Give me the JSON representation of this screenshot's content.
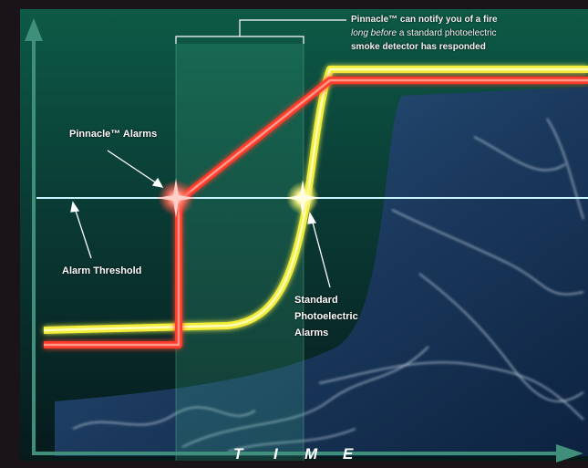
{
  "callout": {
    "line1": "Pinnacle™ can notify you of a fire",
    "line2_emph": "long before",
    "line2_rest": " a standard photoelectric",
    "line3": "smoke detector has responded"
  },
  "labels": {
    "pinnacle_alarms": "Pinnacle™ Alarms",
    "alarm_threshold": "Alarm Threshold",
    "standard_line1": "Standard",
    "standard_line2": "Photoelectric",
    "standard_line3": "Alarms"
  },
  "axis": {
    "time_letters": [
      "T",
      "I",
      "M",
      "E"
    ]
  },
  "colors": {
    "background": "#1a1418",
    "panel_green": "#0f4a3a",
    "pinnacle_curve": "#ff3a2a",
    "standard_curve": "#f2ee3a",
    "threshold_line": "#4fd0f0",
    "axis_arrow": "#3f8f7a"
  }
}
